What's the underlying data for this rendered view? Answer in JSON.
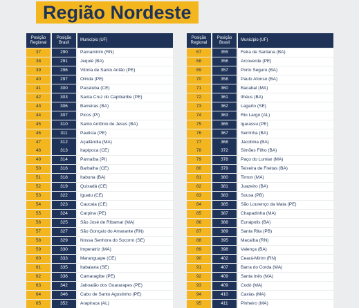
{
  "title": "Região Nordeste",
  "tables": [
    {
      "header": [
        "Posição Regional",
        "Posição Brasil",
        "Município (UF)"
      ],
      "rows": [
        [
          37,
          290,
          "Parnamirim (RN)"
        ],
        [
          38,
          291,
          "Jequié (BA)"
        ],
        [
          39,
          296,
          "Vitória de Santo Antão (PE)"
        ],
        [
          40,
          297,
          "Olinda (PE)"
        ],
        [
          41,
          300,
          "Pacatuba (CE)"
        ],
        [
          42,
          303,
          "Santa Cruz do Capibaribe (PE)"
        ],
        [
          43,
          306,
          "Barreiras (BA)"
        ],
        [
          44,
          307,
          "Picos (PI)"
        ],
        [
          45,
          310,
          "Santo Antônio de Jesus (BA)"
        ],
        [
          46,
          311,
          "Paulista (PE)"
        ],
        [
          47,
          312,
          "Açailândia (MA)"
        ],
        [
          48,
          313,
          "Itapipoca (CE)"
        ],
        [
          49,
          314,
          "Parnaíba (PI)"
        ],
        [
          50,
          316,
          "Barbalha (CE)"
        ],
        [
          51,
          318,
          "Itabuna (BA)"
        ],
        [
          52,
          319,
          "Quixadá (CE)"
        ],
        [
          53,
          322,
          "Iguatu (CE)"
        ],
        [
          54,
          323,
          "Caucaia (CE)"
        ],
        [
          55,
          324,
          "Carpina (PE)"
        ],
        [
          56,
          325,
          "São José de Ribamar (MA)"
        ],
        [
          57,
          327,
          "São Gonçalo do Amarante (RN)"
        ],
        [
          58,
          329,
          "Nossa Senhora do Socorro (SE)"
        ],
        [
          59,
          330,
          "Imperatriz (MA)"
        ],
        [
          60,
          333,
          "Maranguape (CE)"
        ],
        [
          61,
          335,
          "Itabaiana (SE)"
        ],
        [
          62,
          336,
          "Camaragibe (PE)"
        ],
        [
          63,
          342,
          "Jaboatão dos Guararapes (PE)"
        ],
        [
          64,
          346,
          "Cabo de Santo Agostinho (PE)"
        ],
        [
          65,
          352,
          "Arapiraca (AL)"
        ]
      ]
    },
    {
      "header": [
        "Posição Regional",
        "Posição Brasil",
        "Município (UF)"
      ],
      "rows": [
        [
          67,
          355,
          "Feira de Santana (BA)"
        ],
        [
          68,
          356,
          "Arcoverde (PE)"
        ],
        [
          69,
          357,
          "Porto Seguro (BA)"
        ],
        [
          70,
          358,
          "Paulo Afonso (BA)"
        ],
        [
          71,
          360,
          "Bacabal (MA)"
        ],
        [
          72,
          361,
          "Ilhéus (BA)"
        ],
        [
          73,
          362,
          "Lagarto (SE)"
        ],
        [
          74,
          363,
          "Rio Largo (AL)"
        ],
        [
          75,
          365,
          "Igarassu (PE)"
        ],
        [
          76,
          367,
          "Serrinha (BA)"
        ],
        [
          77,
          368,
          "Jacobina (BA)"
        ],
        [
          78,
          372,
          "Simões Filho (BA)"
        ],
        [
          79,
          378,
          "Paço do Lumiar (MA)"
        ],
        [
          80,
          379,
          "Teixeira de Freitas (BA)"
        ],
        [
          81,
          380,
          "Timon (MA)"
        ],
        [
          82,
          381,
          "Juazeiro (BA)"
        ],
        [
          83,
          383,
          "Sousa (PB)"
        ],
        [
          84,
          385,
          "São Lourenço da Mata (PE)"
        ],
        [
          85,
          387,
          "Chapadinha (MA)"
        ],
        [
          86,
          388,
          "Eunápolis (BA)"
        ],
        [
          87,
          389,
          "Santa Rita (PB)"
        ],
        [
          88,
          395,
          "Macaíba (RN)"
        ],
        [
          89,
          398,
          "Valença (BA)"
        ],
        [
          90,
          402,
          "Ceará-Mirim (RN)"
        ],
        [
          91,
          407,
          "Barra do Corda (MA)"
        ],
        [
          92,
          409,
          "Santa Inês (MA)"
        ],
        [
          93,
          409,
          "Codó (MA)"
        ],
        [
          94,
          410,
          "Caxias (MA)"
        ],
        [
          95,
          411,
          "Pinheiro (MA)"
        ]
      ]
    }
  ]
}
